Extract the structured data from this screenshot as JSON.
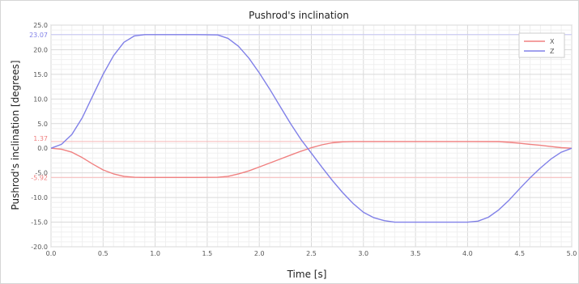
{
  "chart_data": {
    "type": "line",
    "title": "Pushrod's inclination",
    "xlabel": "Time [s]",
    "ylabel": "Pushrod's inclination [degrees]",
    "xlim": [
      0,
      5
    ],
    "ylim": [
      -20,
      25
    ],
    "x_ticks": [
      "0.0",
      "0.5",
      "1.0",
      "1.5",
      "2.0",
      "2.5",
      "3.0",
      "3.5",
      "4.0",
      "4.5",
      "5.0"
    ],
    "y_ticks": [
      "-20.0",
      "-15.0",
      "-10.0",
      "-5.0",
      "0.0",
      "5.0",
      "10.0",
      "15.0",
      "20.0",
      "25.0"
    ],
    "grid": true,
    "legend_position": "top-right",
    "series": [
      {
        "name": "X",
        "color": "#f08080",
        "max_label": "1.37",
        "min_label": "-5.92",
        "x": [
          0,
          0.1,
          0.2,
          0.3,
          0.4,
          0.5,
          0.6,
          0.7,
          0.8,
          0.9,
          1.0,
          1.2,
          1.4,
          1.6,
          1.7,
          1.8,
          1.9,
          2.0,
          2.1,
          2.2,
          2.3,
          2.4,
          2.5,
          2.6,
          2.7,
          2.8,
          2.9,
          3.0,
          3.5,
          4.0,
          4.3,
          4.4,
          4.5,
          4.6,
          4.7,
          4.8,
          4.9,
          5.0
        ],
        "y": [
          0,
          -0.2,
          -0.8,
          -1.9,
          -3.2,
          -4.4,
          -5.2,
          -5.7,
          -5.9,
          -5.92,
          -5.92,
          -5.92,
          -5.92,
          -5.9,
          -5.7,
          -5.2,
          -4.6,
          -3.8,
          -3.0,
          -2.2,
          -1.4,
          -0.6,
          0.1,
          0.7,
          1.1,
          1.3,
          1.37,
          1.37,
          1.37,
          1.37,
          1.35,
          1.2,
          1.0,
          0.8,
          0.6,
          0.35,
          0.12,
          0
        ]
      },
      {
        "name": "Z",
        "color": "#8080e8",
        "max_label": "23.07",
        "x": [
          0,
          0.1,
          0.2,
          0.3,
          0.4,
          0.5,
          0.6,
          0.7,
          0.8,
          0.9,
          1.0,
          1.2,
          1.4,
          1.6,
          1.7,
          1.8,
          1.9,
          2.0,
          2.1,
          2.2,
          2.3,
          2.4,
          2.5,
          2.6,
          2.7,
          2.8,
          2.9,
          3.0,
          3.1,
          3.2,
          3.3,
          3.4,
          3.6,
          3.8,
          4.0,
          4.1,
          4.2,
          4.3,
          4.4,
          4.5,
          4.6,
          4.7,
          4.8,
          4.9,
          5.0
        ],
        "y": [
          0,
          0.8,
          2.8,
          6.2,
          10.6,
          15.0,
          18.8,
          21.5,
          22.8,
          23.07,
          23.07,
          23.07,
          23.07,
          23.0,
          22.3,
          20.7,
          18.3,
          15.3,
          12.0,
          8.5,
          5.0,
          1.8,
          -1.0,
          -3.8,
          -6.5,
          -9.0,
          -11.2,
          -13.0,
          -14.1,
          -14.7,
          -15.0,
          -15.0,
          -15.0,
          -15.0,
          -15.0,
          -14.8,
          -14.0,
          -12.5,
          -10.5,
          -8.2,
          -6.0,
          -4.0,
          -2.2,
          -0.8,
          0
        ]
      }
    ]
  }
}
